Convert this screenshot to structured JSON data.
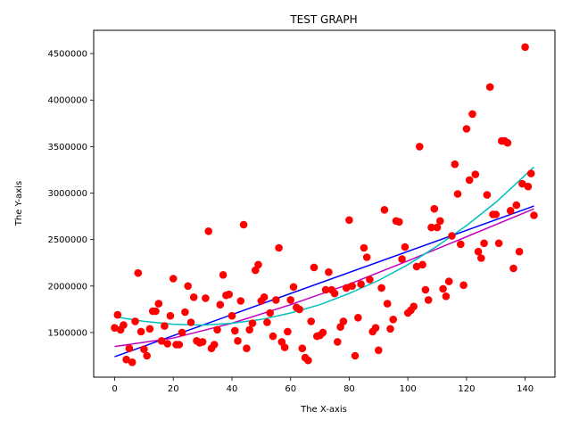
{
  "chart_data": {
    "type": "scatter",
    "title": "TEST GRAPH",
    "xlabel": "The X-axis",
    "ylabel": "The Y-axis",
    "xlim": [
      -7.15,
      150.15
    ],
    "ylim": [
      1020000,
      4750000
    ],
    "xticks": [
      0,
      20,
      40,
      60,
      80,
      100,
      120,
      140
    ],
    "yticks": [
      1500000,
      2000000,
      2500000,
      3000000,
      3500000,
      4000000,
      4500000
    ],
    "grid": false,
    "legend": "none",
    "series": [
      {
        "kind": "scatter",
        "color": "#ff0000",
        "x": [
          0,
          1,
          2,
          3,
          4,
          5,
          6,
          7,
          8,
          9,
          10,
          11,
          12,
          13,
          14,
          15,
          16,
          17,
          18,
          19,
          20,
          21,
          22,
          23,
          24,
          25,
          26,
          27,
          28,
          29,
          30,
          31,
          32,
          33,
          34,
          35,
          36,
          37,
          38,
          39,
          40,
          41,
          42,
          43,
          44,
          45,
          46,
          47,
          48,
          49,
          50,
          51,
          52,
          53,
          54,
          55,
          56,
          57,
          58,
          59,
          60,
          61,
          62,
          63,
          64,
          65,
          66,
          67,
          68,
          69,
          70,
          71,
          72,
          73,
          74,
          75,
          76,
          77,
          78,
          79,
          80,
          81,
          82,
          83,
          84,
          85,
          86,
          87,
          88,
          89,
          90,
          91,
          92,
          93,
          94,
          95,
          96,
          97,
          98,
          99,
          100,
          101,
          102,
          103,
          104,
          105,
          106,
          107,
          108,
          109,
          110,
          111,
          112,
          113,
          114,
          115,
          116,
          117,
          118,
          119,
          120,
          121,
          122,
          123,
          124,
          125,
          126,
          127,
          128,
          129,
          130,
          131,
          132,
          133,
          134,
          135,
          136,
          137,
          138,
          139,
          140,
          141,
          142,
          143
        ],
        "y": [
          1550000,
          1690000,
          1530000,
          1580000,
          1210000,
          1330000,
          1180000,
          1620000,
          2140000,
          1510000,
          1320000,
          1250000,
          1540000,
          1730000,
          1730000,
          1810000,
          1410000,
          1570000,
          1380000,
          1680000,
          2080000,
          1370000,
          1370000,
          1500000,
          1720000,
          2000000,
          1610000,
          1880000,
          1410000,
          1390000,
          1400000,
          1870000,
          2590000,
          1330000,
          1370000,
          1530000,
          1800000,
          2120000,
          1900000,
          1910000,
          1680000,
          1520000,
          1410000,
          1840000,
          2660000,
          1330000,
          1530000,
          1600000,
          2170000,
          2230000,
          1840000,
          1880000,
          1610000,
          1710000,
          1460000,
          1850000,
          2410000,
          1400000,
          1340000,
          1510000,
          1850000,
          1990000,
          1770000,
          1750000,
          1330000,
          1230000,
          1200000,
          1620000,
          2200000,
          1460000,
          1470000,
          1500000,
          1960000,
          2150000,
          1960000,
          1920000,
          1400000,
          1560000,
          1620000,
          1980000,
          2710000,
          2000000,
          1250000,
          1660000,
          2020000,
          2410000,
          2310000,
          2070000,
          1510000,
          1550000,
          1310000,
          1980000,
          2820000,
          1810000,
          1540000,
          1640000,
          2700000,
          2690000,
          2290000,
          2420000,
          1710000,
          1740000,
          1780000,
          2210000,
          3500000,
          2230000,
          1960000,
          1850000,
          2630000,
          2830000,
          2630000,
          2700000,
          1970000,
          1890000,
          2050000,
          2540000,
          3310000,
          2990000,
          2450000,
          2010000,
          3690000,
          3140000,
          3850000,
          3200000,
          2370000,
          2300000,
          2460000,
          2980000,
          4140000,
          2770000,
          2770000,
          2460000,
          3560000,
          3560000,
          3540000,
          2810000,
          2190000,
          2870000,
          2370000,
          3100000,
          4570000,
          3070000,
          3210000,
          2760000
        ]
      },
      {
        "kind": "line",
        "name": "",
        "color": "#0000ff",
        "fit": "linear",
        "x": [
          0,
          143
        ],
        "y": [
          1240000,
          2860000
        ]
      },
      {
        "kind": "line",
        "color": "#bf00bf",
        "fit": "power",
        "x": [
          0,
          20,
          40,
          60,
          80,
          100,
          120,
          143
        ],
        "y": [
          1350000,
          1440000,
          1600000,
          1800000,
          2020000,
          2270000,
          2530000,
          2830000
        ]
      },
      {
        "kind": "line",
        "color": "#00bfbf",
        "fit": "quadratic",
        "x": [
          0,
          10,
          20,
          30,
          40,
          50,
          60,
          70,
          80,
          90,
          100,
          110,
          120,
          130,
          143
        ],
        "y": [
          1670000,
          1620000,
          1590000,
          1580000,
          1600000,
          1640000,
          1710000,
          1800000,
          1920000,
          2060000,
          2230000,
          2430000,
          2650000,
          2900000,
          3280000
        ]
      }
    ]
  }
}
